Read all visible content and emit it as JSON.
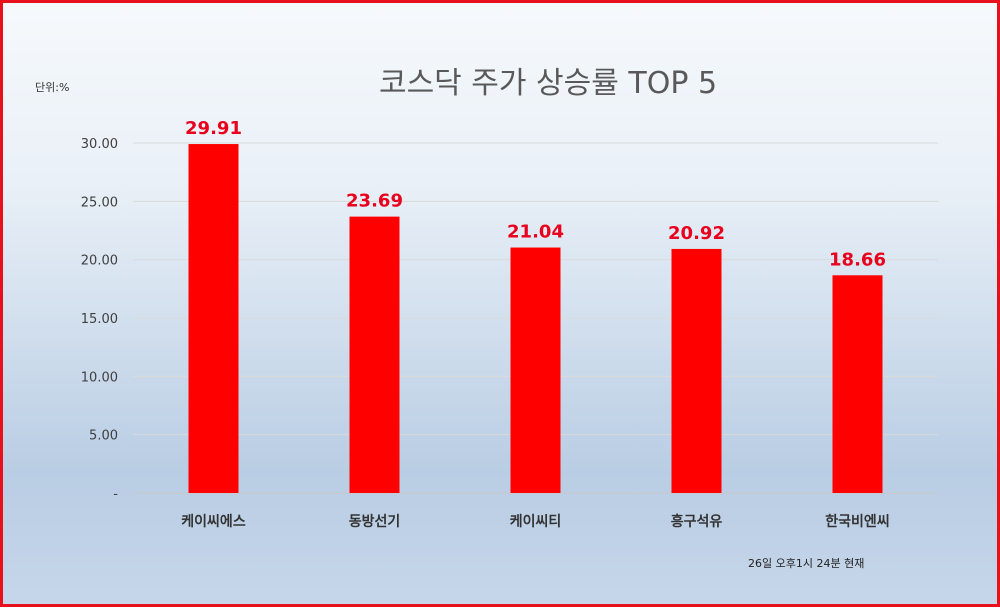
{
  "chart_data": {
    "type": "bar",
    "title": "코스닥 주가 상승률 TOP 5",
    "unit_label": "단위:%",
    "footnote": "26일 오후1시 24분 현재",
    "categories": [
      "케이씨에스",
      "동방선기",
      "케이씨티",
      "흥구석유",
      "한국비엔씨"
    ],
    "values": [
      29.91,
      23.69,
      21.04,
      20.92,
      18.66
    ],
    "value_labels": [
      "29.91",
      "23.69",
      "21.04",
      "20.92",
      "18.66"
    ],
    "yticks": [
      "-",
      "5.00",
      "10.00",
      "15.00",
      "20.00",
      "25.00",
      "30.00"
    ],
    "ylim": [
      0,
      30
    ],
    "grid": true,
    "legend": "none",
    "bar_color": "#ff0000",
    "label_color": "#e8001c"
  }
}
